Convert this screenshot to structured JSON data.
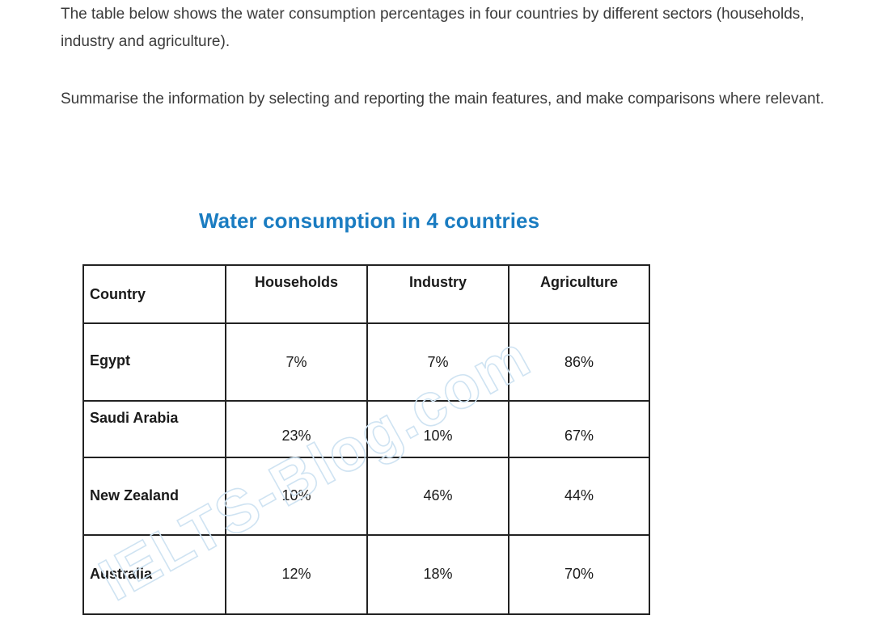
{
  "intro": {
    "task_text": "The table below shows the water consumption percentages in four countries by different sectors (households, industry and agriculture).",
    "instruction_text": "Summarise the information by selecting and reporting the main features, and make comparisons where relevant."
  },
  "chart_data": {
    "type": "table",
    "title": "Water consumption in 4 countries",
    "columns": [
      "Country",
      "Households",
      "Industry",
      "Agriculture"
    ],
    "rows": [
      {
        "country": "Egypt",
        "households": "7%",
        "industry": "7%",
        "agriculture": "86%"
      },
      {
        "country": "Saudi Arabia",
        "households": "23%",
        "industry": "10%",
        "agriculture": "67%"
      },
      {
        "country": "New Zealand",
        "households": "10%",
        "industry": "46%",
        "agriculture": "44%"
      },
      {
        "country": "Australia",
        "households": "12%",
        "industry": "18%",
        "agriculture": "70%"
      }
    ]
  },
  "watermark": {
    "text": "IELTS-Blog.com",
    "color": "#cfe3f2"
  },
  "colors": {
    "title": "#1a7cc1",
    "body_text": "#3a3a3a",
    "table_border": "#222222"
  }
}
